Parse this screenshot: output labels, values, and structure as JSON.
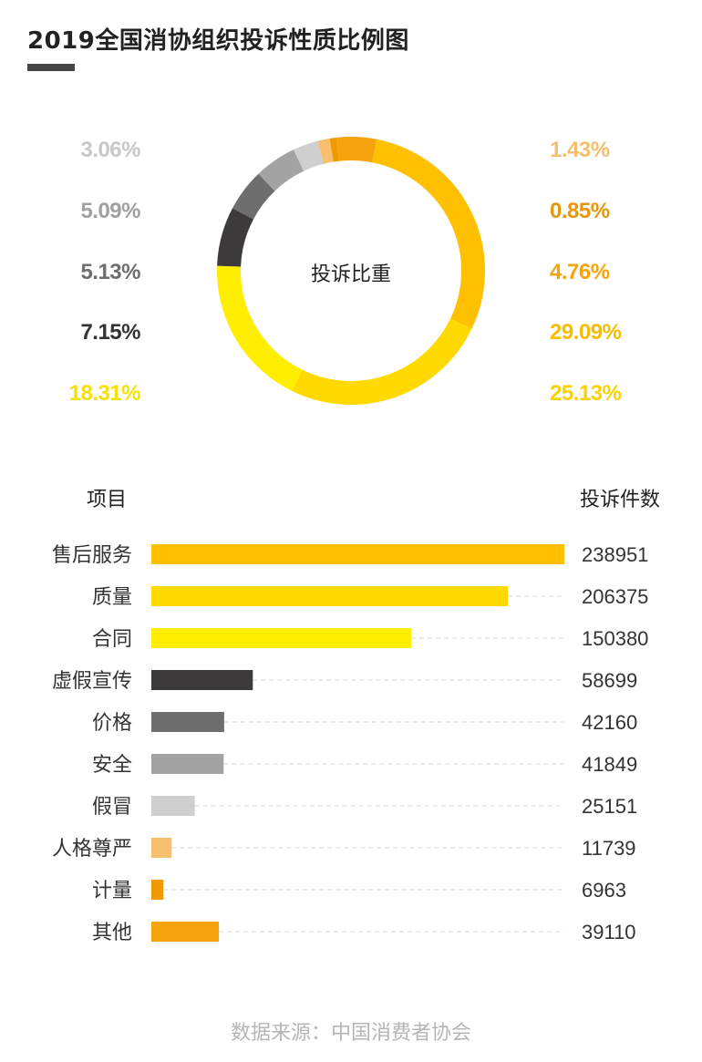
{
  "title": "2019全国消协组织投诉性质比例图",
  "donut_center_label": "投诉比重",
  "header_left": "项目",
  "header_right": "投诉件数",
  "source": "数据来源：中国消费者协会",
  "chart_data": [
    {
      "type": "pie",
      "subtype": "donut",
      "center_label": "投诉比重",
      "slices": [
        {
          "category": "售后服务",
          "percent": 29.09,
          "label": "29.09%",
          "color": "#FFC000"
        },
        {
          "category": "质量",
          "percent": 25.13,
          "label": "25.13%",
          "color": "#FFD900"
        },
        {
          "category": "合同",
          "percent": 18.31,
          "label": "18.31%",
          "color": "#FFEE00"
        },
        {
          "category": "虚假宣传",
          "percent": 7.15,
          "label": "7.15%",
          "color": "#3C3A3A"
        },
        {
          "category": "价格",
          "percent": 5.13,
          "label": "5.13%",
          "color": "#6E6E6E"
        },
        {
          "category": "安全",
          "percent": 5.09,
          "label": "5.09%",
          "color": "#A3A3A3"
        },
        {
          "category": "假冒",
          "percent": 3.06,
          "label": "3.06%",
          "color": "#CFCFCF"
        },
        {
          "category": "人格尊严",
          "percent": 1.43,
          "label": "1.43%",
          "color": "#F7BF6E"
        },
        {
          "category": "计量",
          "percent": 0.85,
          "label": "0.85%",
          "color": "#EE9A00"
        },
        {
          "category": "其他",
          "percent": 4.76,
          "label": "4.76%",
          "color": "#F5A40E"
        }
      ],
      "left_labels": [
        {
          "text": "3.06%",
          "color": "#C8C8C8"
        },
        {
          "text": "5.09%",
          "color": "#A0A0A0"
        },
        {
          "text": "5.13%",
          "color": "#6E6E6E"
        },
        {
          "text": "7.15%",
          "color": "#333333"
        },
        {
          "text": "18.31%",
          "color": "#F6E200"
        }
      ],
      "right_labels": [
        {
          "text": "1.43%",
          "color": "#F3BE70"
        },
        {
          "text": "0.85%",
          "color": "#E8960A"
        },
        {
          "text": "4.76%",
          "color": "#F5A40E"
        },
        {
          "text": "29.09%",
          "color": "#F8BC00"
        },
        {
          "text": "25.13%",
          "color": "#FBD200"
        }
      ]
    },
    {
      "type": "bar",
      "orientation": "horizontal",
      "xlabel": "投诉件数",
      "ylabel": "项目",
      "xlim": [
        0,
        238951
      ],
      "categories": [
        "售后服务",
        "质量",
        "合同",
        "虚假宣传",
        "价格",
        "安全",
        "假冒",
        "人格尊严",
        "计量",
        "其他"
      ],
      "values": [
        238951,
        206375,
        150380,
        58699,
        42160,
        41849,
        25151,
        11739,
        6963,
        39110
      ],
      "value_labels": [
        "238951",
        "206375",
        "150380",
        "58699",
        "42160",
        "41849",
        "25151",
        "11739",
        "6963",
        "39110"
      ],
      "colors": [
        "#FFC000",
        "#FFD900",
        "#FFEE00",
        "#3C3A3A",
        "#6E6E6E",
        "#A3A3A3",
        "#CFCFCF",
        "#F7BF6E",
        "#EE9A00",
        "#F5A40E"
      ],
      "grid": "dashed-row-guides"
    }
  ]
}
